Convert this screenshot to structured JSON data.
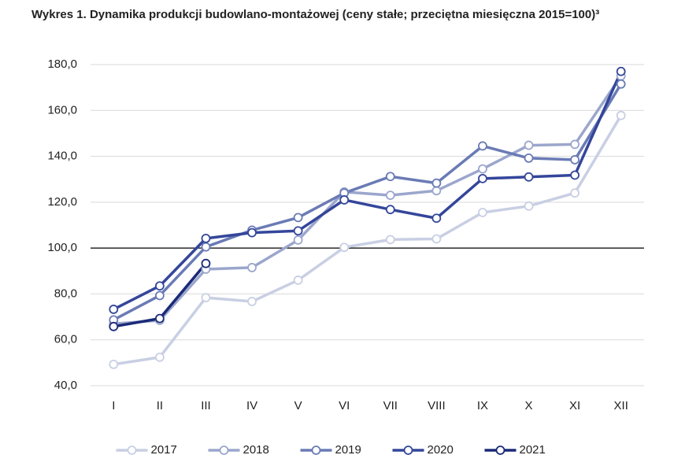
{
  "chart_data": {
    "type": "line",
    "title": "Wykres 1.  Dynamika produkcji budowlano-montażowej (ceny stałe; przeciętna miesięczna 2015=100)³",
    "categories": [
      "I",
      "II",
      "III",
      "IV",
      "V",
      "VI",
      "VII",
      "VIII",
      "IX",
      "X",
      "XI",
      "XII"
    ],
    "series": [
      {
        "name": "2017",
        "color": "#c9cfe3",
        "values": [
          49.3,
          52.4,
          78.4,
          76.7,
          86,
          100.3,
          103.7,
          104,
          115.5,
          118.3,
          124,
          157.8
        ]
      },
      {
        "name": "2018",
        "color": "#9ba6cc",
        "values": [
          67,
          68.5,
          90.8,
          91.5,
          103.5,
          124.5,
          123,
          125,
          134.5,
          144.8,
          145.2,
          175
        ]
      },
      {
        "name": "2019",
        "color": "#6a7bb5",
        "values": [
          68.7,
          79.3,
          100.5,
          107.8,
          113.3,
          124,
          131.2,
          128.3,
          144.5,
          139.2,
          138.5,
          171.5
        ]
      },
      {
        "name": "2020",
        "color": "#34469a",
        "values": [
          73.3,
          83.5,
          104.2,
          106.7,
          107.5,
          121,
          116.8,
          113,
          130.3,
          131,
          131.8,
          177
        ]
      },
      {
        "name": "2021",
        "color": "#1a2a78",
        "values": [
          65.8,
          69.3,
          93.3,
          null,
          null,
          null,
          null,
          null,
          null,
          null,
          null,
          null
        ]
      }
    ],
    "ylim": [
      40,
      180
    ],
    "yticks": [
      {
        "value": 40,
        "label": "40,0"
      },
      {
        "value": 60,
        "label": "60,0"
      },
      {
        "value": 80,
        "label": "80,0"
      },
      {
        "value": 100,
        "label": "100,0"
      },
      {
        "value": 120,
        "label": "120,0"
      },
      {
        "value": 140,
        "label": "140,0"
      },
      {
        "value": 160,
        "label": "160,0"
      },
      {
        "value": 180,
        "label": "180,0"
      }
    ],
    "reference_line": 100,
    "grid": true,
    "legend": "bottom"
  }
}
